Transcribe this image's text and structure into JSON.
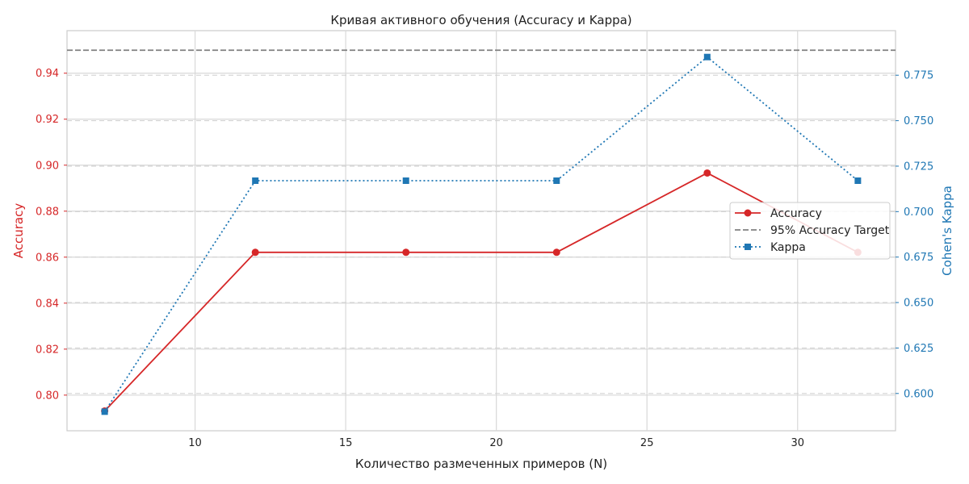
{
  "chart_data": {
    "type": "line",
    "title": "Кривая активного обучения (Accuracy и Kappa)",
    "xlabel": "Количество размеченных примеров (N)",
    "ylabel_left": "Accuracy",
    "ylabel_right": "Cohen's Kappa",
    "x": [
      7,
      12,
      17,
      22,
      27,
      32
    ],
    "xlim": [
      5.75,
      33.25
    ],
    "ylim_left": [
      0.7845,
      0.9585
    ],
    "ylim_right": [
      0.5795,
      0.7995
    ],
    "x_ticks": [
      10,
      15,
      20,
      25,
      30
    ],
    "y_ticks_left": [
      0.8,
      0.82,
      0.84,
      0.86,
      0.88,
      0.9,
      0.92,
      0.94
    ],
    "y_ticks_right": [
      0.6,
      0.625,
      0.65,
      0.675,
      0.7,
      0.725,
      0.75,
      0.775
    ],
    "series": [
      {
        "name": "Accuracy",
        "axis": "left",
        "color": "#d62728",
        "line_style": "solid",
        "marker": "circle",
        "values": [
          0.7931,
          0.8621,
          0.8621,
          0.8621,
          0.8966,
          0.8621
        ]
      },
      {
        "name": "95% Accuracy Target",
        "axis": "left",
        "color": "#808080",
        "line_style": "dashed",
        "marker": "none",
        "constant": 0.95
      },
      {
        "name": "Kappa",
        "axis": "right",
        "color": "#1f77b4",
        "line_style": "dotted",
        "marker": "square",
        "values": [
          0.59,
          0.717,
          0.717,
          0.717,
          0.785,
          0.717
        ]
      }
    ],
    "grid": true,
    "legend_position": "center-right",
    "left_axis_color": "#d62728",
    "right_axis_color": "#1f77b4"
  }
}
